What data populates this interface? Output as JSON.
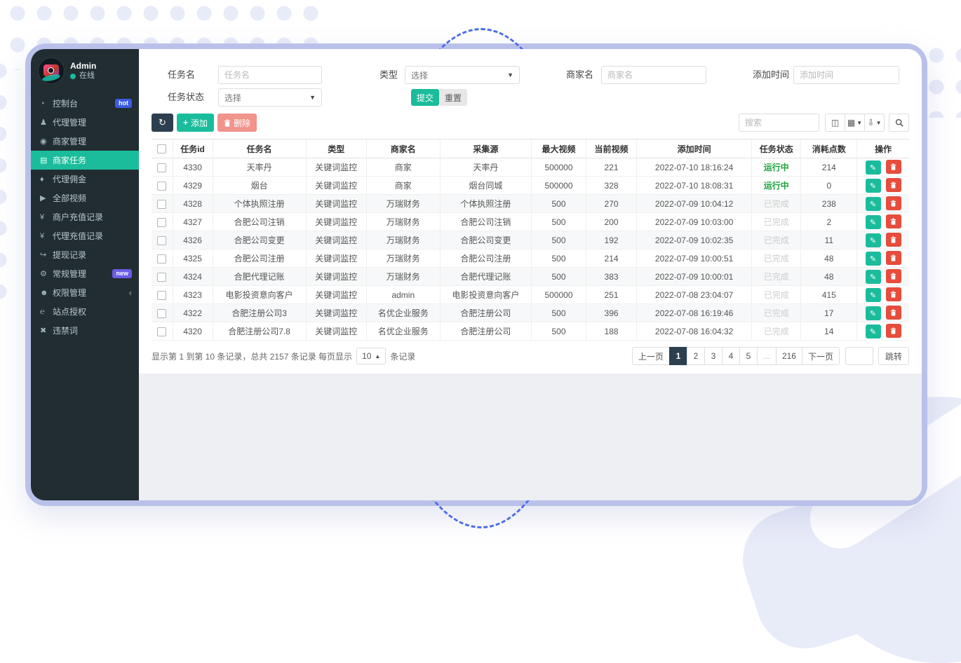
{
  "colors": {
    "accent_teal": "#1abc9c",
    "dark_navy": "#2c3e50",
    "danger_red": "#e74c3c",
    "muted_delete_btn": "#f0948c",
    "running_green": "#1ea33c",
    "done_gray": "#cccccc",
    "hot_badge": "#3a5ce4",
    "new_badge": "#6c5ce7",
    "window_border": "#b9c1ea",
    "decor_lavender": "#e8ebf8",
    "dash_blue": "#4a6ce8",
    "sidebar_bg": "#222d32"
  },
  "sidebar": {
    "profile": {
      "name": "Admin",
      "status": "在线"
    },
    "items": [
      {
        "label": "控制台",
        "icon": "dashboard-icon",
        "badge": "hot",
        "badge_color": "#3a5ce4"
      },
      {
        "label": "代理管理",
        "icon": "agent-management-icon"
      },
      {
        "label": "商家管理",
        "icon": "merchant-management-icon"
      },
      {
        "label": "商家任务",
        "icon": "merchant-task-icon",
        "active": true
      },
      {
        "label": "代理佣金",
        "icon": "commission-icon"
      },
      {
        "label": "全部视频",
        "icon": "all-videos-icon"
      },
      {
        "label": "商户充值记录",
        "icon": "merchant-recharge-icon"
      },
      {
        "label": "代理充值记录",
        "icon": "agent-recharge-icon"
      },
      {
        "label": "提现记录",
        "icon": "withdraw-record-icon"
      },
      {
        "label": "常规管理",
        "icon": "general-settings-icon",
        "badge": "new",
        "badge_color": "#6c5ce7"
      },
      {
        "label": "权限管理",
        "icon": "permission-icon",
        "chevron": true
      },
      {
        "label": "站点授权",
        "icon": "site-auth-icon"
      },
      {
        "label": "违禁词",
        "icon": "banned-words-icon"
      }
    ]
  },
  "filters": {
    "task_name_label": "任务名",
    "task_name_placeholder": "任务名",
    "type_label": "类型",
    "type_value": "选择",
    "merchant_label": "商家名",
    "merchant_placeholder": "商家名",
    "time_label": "添加时间",
    "time_placeholder": "添加时间",
    "status_label": "任务状态",
    "status_value": "选择",
    "submit_label": "提交",
    "reset_label": "重置"
  },
  "toolbar": {
    "add_label": "添加",
    "delete_label": "删除",
    "search_placeholder": "搜索"
  },
  "table": {
    "columns": [
      "任务id",
      "任务名",
      "类型",
      "商家名",
      "采集源",
      "最大视频",
      "当前视频",
      "添加时间",
      "任务状态",
      "消耗点数",
      "操作"
    ],
    "rows": [
      {
        "id": "4330",
        "name": "天率丹",
        "type": "关键词监控",
        "merchant": "商家",
        "source": "天率丹",
        "max": "500000",
        "current": "221",
        "added": "2022-07-10 18:16:24",
        "status": "运行中",
        "status_state": "running",
        "points": "214"
      },
      {
        "id": "4329",
        "name": "烟台",
        "type": "关键词监控",
        "merchant": "商家",
        "source": "烟台同城",
        "max": "500000",
        "current": "328",
        "added": "2022-07-10 18:08:31",
        "status": "运行中",
        "status_state": "running",
        "points": "0"
      },
      {
        "id": "4328",
        "name": "个体执照注册",
        "type": "关键词监控",
        "merchant": "万瑞财务",
        "source": "个体执照注册",
        "max": "500",
        "current": "270",
        "added": "2022-07-09 10:04:12",
        "status": "已完成",
        "status_state": "done",
        "points": "238"
      },
      {
        "id": "4327",
        "name": "合肥公司注销",
        "type": "关键词监控",
        "merchant": "万瑞财务",
        "source": "合肥公司注销",
        "max": "500",
        "current": "200",
        "added": "2022-07-09 10:03:00",
        "status": "已完成",
        "status_state": "done",
        "points": "2"
      },
      {
        "id": "4326",
        "name": "合肥公司变更",
        "type": "关键词监控",
        "merchant": "万瑞财务",
        "source": "合肥公司变更",
        "max": "500",
        "current": "192",
        "added": "2022-07-09 10:02:35",
        "status": "已完成",
        "status_state": "done",
        "points": "11"
      },
      {
        "id": "4325",
        "name": "合肥公司注册",
        "type": "关键词监控",
        "merchant": "万瑞财务",
        "source": "合肥公司注册",
        "max": "500",
        "current": "214",
        "added": "2022-07-09 10:00:51",
        "status": "已完成",
        "status_state": "done",
        "points": "48"
      },
      {
        "id": "4324",
        "name": "合肥代理记账",
        "type": "关键词监控",
        "merchant": "万瑞财务",
        "source": "合肥代理记账",
        "max": "500",
        "current": "383",
        "added": "2022-07-09 10:00:01",
        "status": "已完成",
        "status_state": "done",
        "points": "48"
      },
      {
        "id": "4323",
        "name": "电影投资意向客户",
        "type": "关键词监控",
        "merchant": "admin",
        "source": "电影投资意向客户",
        "max": "500000",
        "current": "251",
        "added": "2022-07-08 23:04:07",
        "status": "已完成",
        "status_state": "done",
        "points": "415"
      },
      {
        "id": "4322",
        "name": "合肥注册公司3",
        "type": "关键词监控",
        "merchant": "名优企业服务",
        "source": "合肥注册公司",
        "max": "500",
        "current": "396",
        "added": "2022-07-08 16:19:46",
        "status": "已完成",
        "status_state": "done",
        "points": "17"
      },
      {
        "id": "4320",
        "name": "合肥注册公司7.8",
        "type": "关键词监控",
        "merchant": "名优企业服务",
        "source": "合肥注册公司",
        "max": "500",
        "current": "188",
        "added": "2022-07-08 16:04:32",
        "status": "已完成",
        "status_state": "done",
        "points": "14"
      }
    ]
  },
  "footer": {
    "summary_prefix": "显示第 1 到第 10 条记录，总共 2157 条记录 每页显示",
    "page_size": "10",
    "summary_suffix": "条记录",
    "pages": [
      "上一页",
      "1",
      "2",
      "3",
      "4",
      "5",
      "...",
      "216",
      "下一页"
    ],
    "active_page": "1",
    "jump_label": "跳转"
  }
}
